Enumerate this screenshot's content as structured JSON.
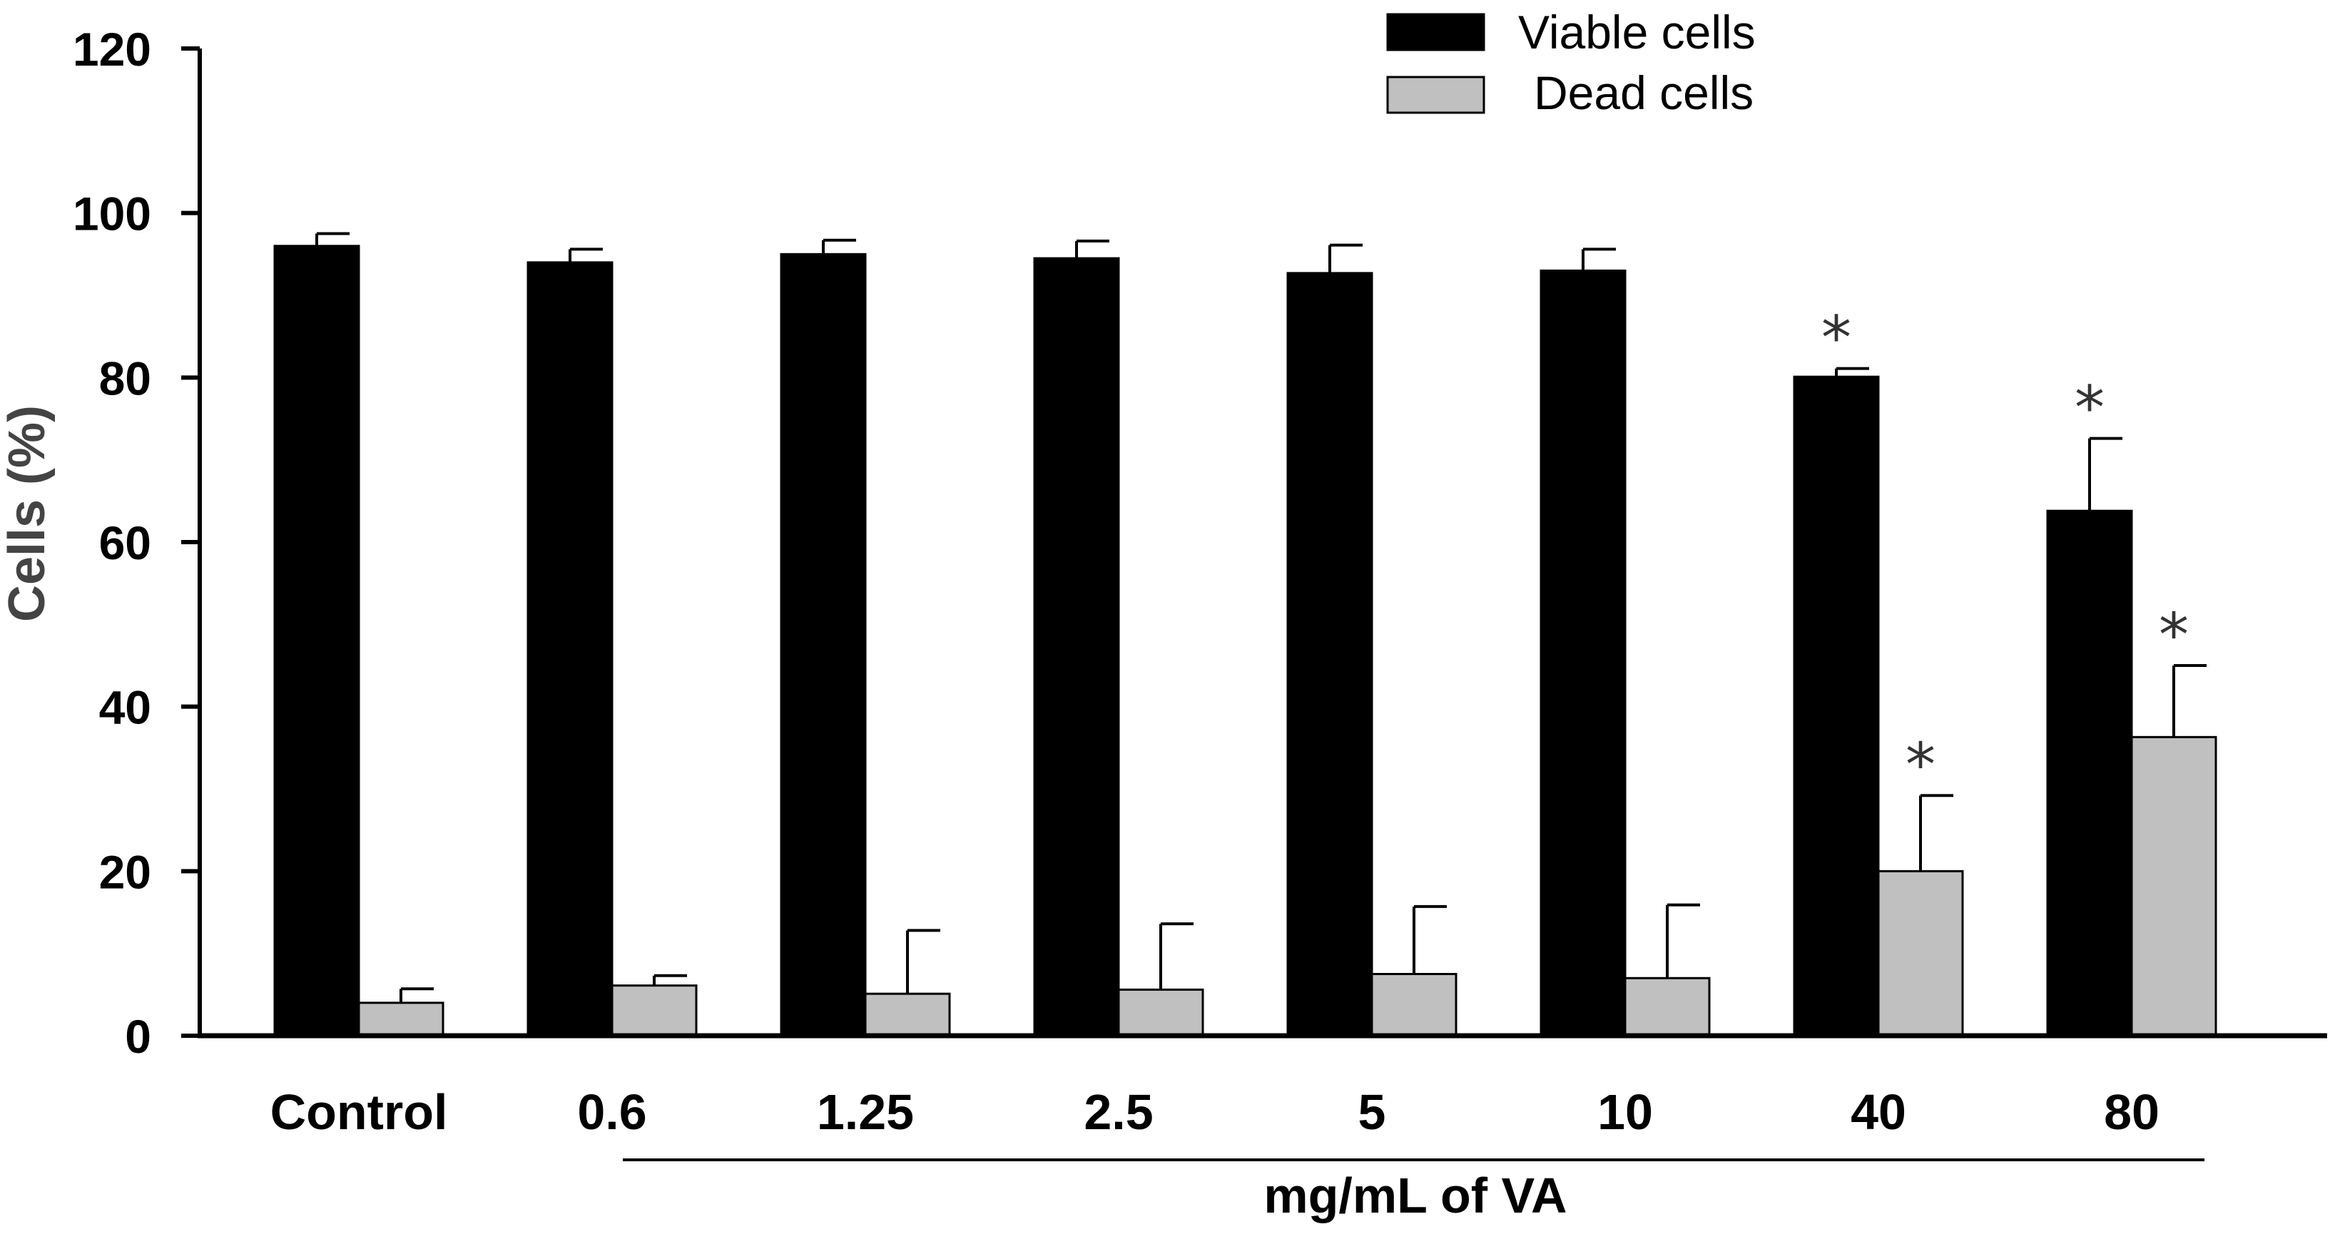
{
  "chart_data": {
    "type": "bar",
    "categories": [
      "Control",
      "0.6",
      "1.25",
      "2.5",
      "5",
      "10",
      "40",
      "80"
    ],
    "ylabel": "Cells (%)",
    "xlabel": "mg/mL of VA",
    "ylim": [
      0,
      120
    ],
    "yticks": [
      0,
      20,
      40,
      60,
      80,
      100,
      120
    ],
    "grid": false,
    "legend_position": "top",
    "series": [
      {
        "name": "Viable cells",
        "color": "#000000",
        "values": [
          96.0,
          94.0,
          95.0,
          94.5,
          92.7,
          93.0,
          80.1,
          63.8
        ],
        "errors": [
          1.5,
          1.6,
          1.7,
          2.1,
          3.4,
          2.6,
          1.0,
          8.8
        ],
        "significant": [
          false,
          false,
          false,
          false,
          false,
          false,
          true,
          true
        ]
      },
      {
        "name": "Dead cells",
        "color": "#c0c0c0",
        "values": [
          4.0,
          6.1,
          5.1,
          5.6,
          7.5,
          7.0,
          20.0,
          36.3
        ],
        "errors": [
          1.7,
          1.2,
          7.7,
          8.0,
          8.2,
          8.9,
          9.2,
          8.7
        ],
        "significant": [
          false,
          false,
          false,
          false,
          false,
          false,
          true,
          true
        ]
      }
    ],
    "significance_marker": "*"
  }
}
